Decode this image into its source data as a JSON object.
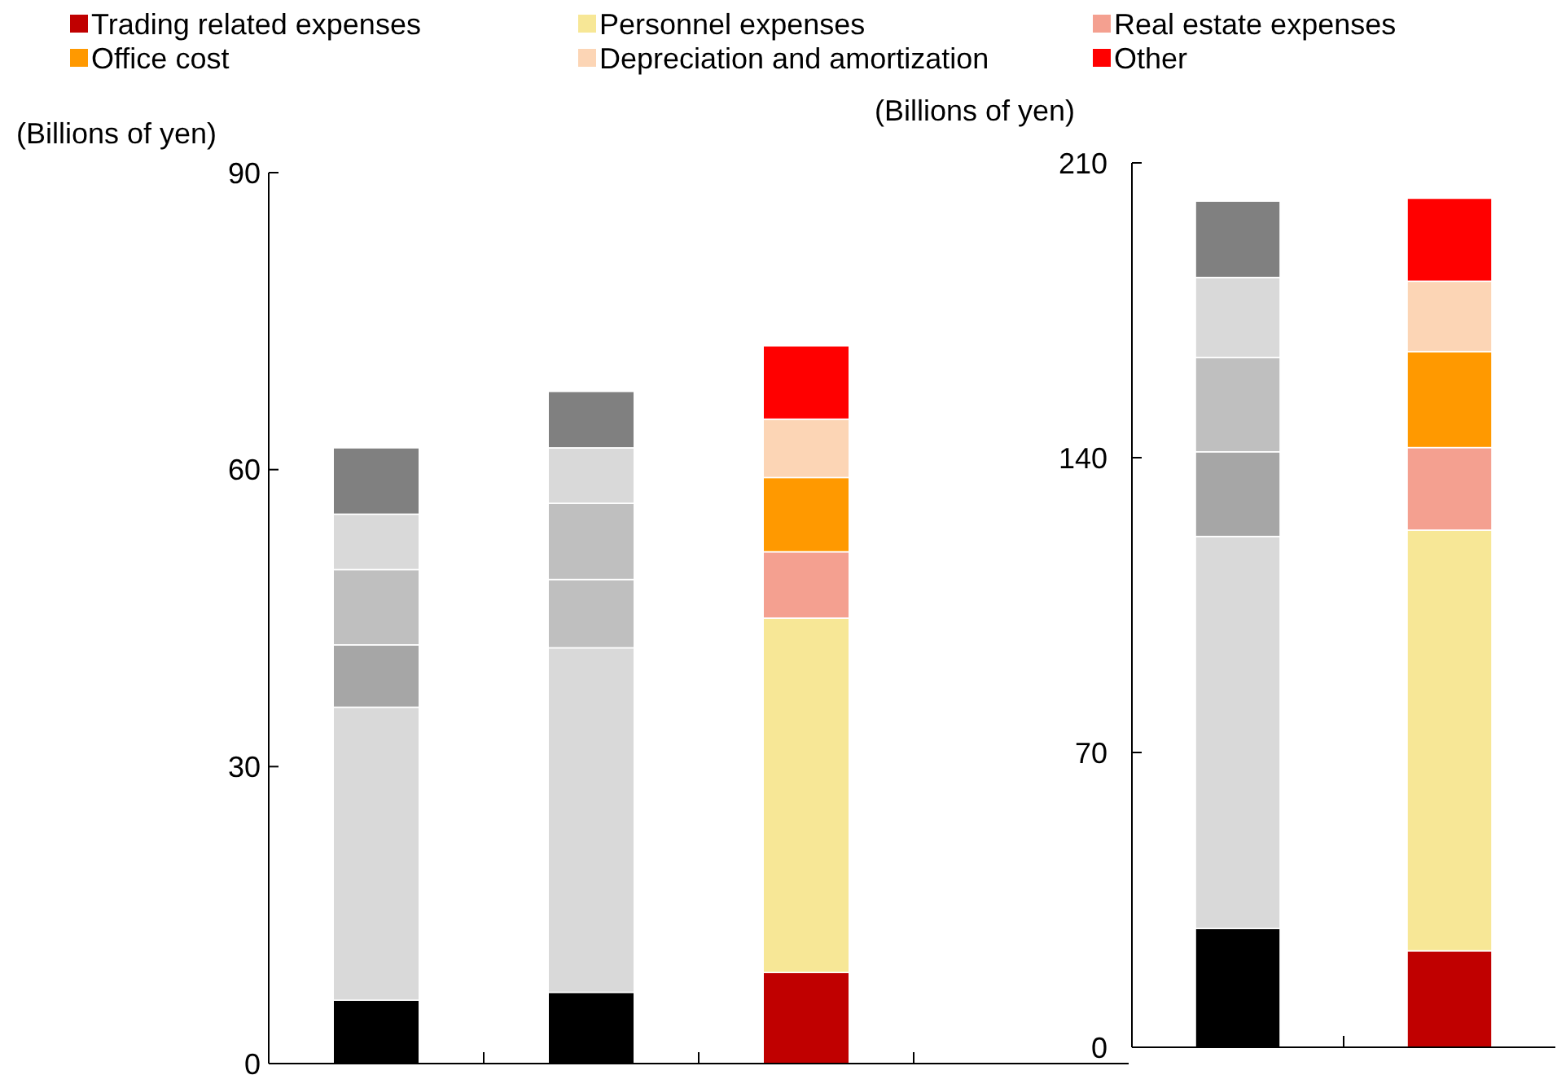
{
  "chart_data": [
    {
      "type": "bar",
      "stacked": true,
      "ylabel": "(Billions of yen)",
      "categories": [
        null,
        null,
        null,
        null
      ],
      "ylim": [
        0,
        90
      ],
      "yticks": [
        0,
        30,
        60,
        90
      ],
      "legend": "top",
      "series": [
        {
          "name": "Trading related expenses",
          "color": "#c00000",
          "colors": [
            "#000000",
            "#000000",
            "#c00000",
            null
          ],
          "values": [
            6.4,
            7.2,
            9.2,
            null
          ]
        },
        {
          "name": "Personnel expenses",
          "color": "#f7e796",
          "colors": [
            "#d9d9d9",
            "#d9d9d9",
            "#f7e796",
            null
          ],
          "values": [
            29.6,
            34.8,
            35.8,
            null
          ]
        },
        {
          "name": "Real estate expenses",
          "color": "#f4a090",
          "colors": [
            "#a6a6a6",
            "#bfbfbf",
            "#f4a090",
            null
          ],
          "values": [
            6.3,
            6.9,
            6.7,
            null
          ]
        },
        {
          "name": "Office cost",
          "color": "#ff9900",
          "colors": [
            "#bfbfbf",
            "#bfbfbf",
            "#ff9900",
            null
          ],
          "values": [
            7.6,
            7.7,
            7.5,
            null
          ]
        },
        {
          "name": "Depreciation and amortization",
          "color": "#fcd5b5",
          "colors": [
            "#d9d9d9",
            "#d9d9d9",
            "#fcd5b5",
            null
          ],
          "values": [
            5.6,
            5.6,
            5.9,
            null
          ]
        },
        {
          "name": "Other",
          "color": "#ff0000",
          "colors": [
            "#808080",
            "#808080",
            "#ff0000",
            null
          ],
          "values": [
            6.7,
            5.7,
            7.4,
            null
          ]
        }
      ]
    },
    {
      "type": "bar",
      "stacked": true,
      "ylabel": "(Billions of yen)",
      "categories": [
        null,
        null
      ],
      "ylim": [
        0,
        210
      ],
      "yticks": [
        0,
        70,
        140,
        210
      ],
      "series": [
        {
          "colors": [
            "#000000",
            "#c00000"
          ],
          "values": [
            28.2,
            22.9
          ]
        },
        {
          "colors": [
            "#d9d9d9",
            "#f7e796"
          ],
          "values": [
            93.1,
            99.9
          ]
        },
        {
          "colors": [
            "#a6a6a6",
            "#f4a090"
          ],
          "values": [
            20.1,
            19.6
          ]
        },
        {
          "colors": [
            "#bfbfbf",
            "#ff9900"
          ],
          "values": [
            22.4,
            22.8
          ]
        },
        {
          "colors": [
            "#d9d9d9",
            "#fcd5b5"
          ],
          "values": [
            19.0,
            16.7
          ]
        },
        {
          "colors": [
            "#808080",
            "#ff0000"
          ],
          "values": [
            18.1,
            19.7
          ]
        }
      ]
    }
  ]
}
